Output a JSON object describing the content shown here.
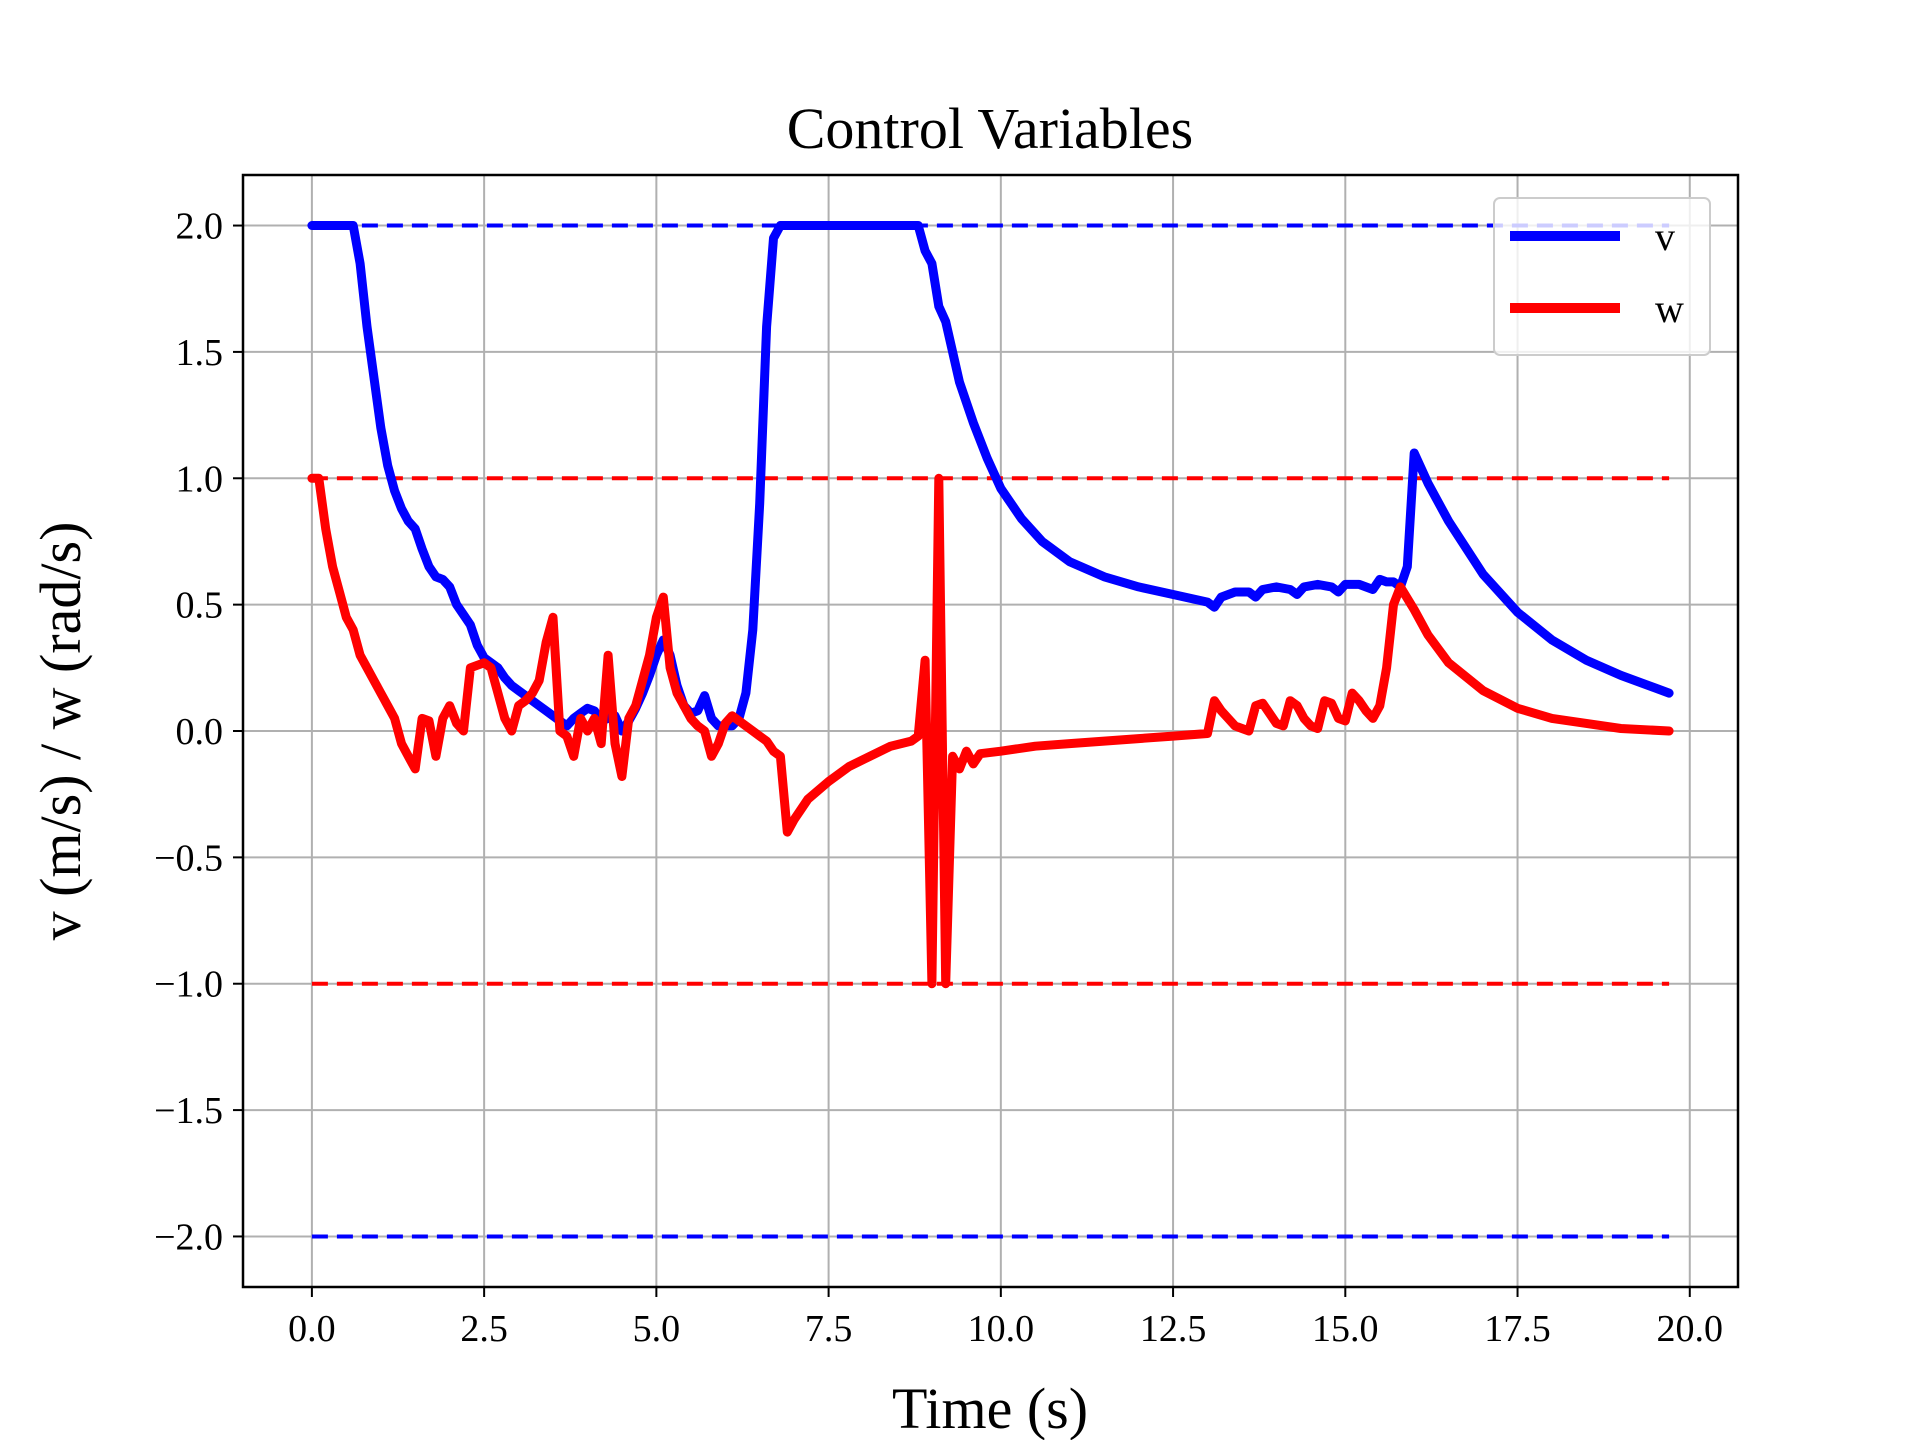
{
  "chart_data": {
    "type": "line",
    "title": "Control Variables",
    "xlabel": "Time (s)",
    "ylabel": "v (m/s) / w (rad/s)",
    "xlim": [
      -1.0,
      20.7
    ],
    "ylim": [
      -2.2,
      2.2
    ],
    "xticks": [
      0.0,
      2.5,
      5.0,
      7.5,
      10.0,
      12.5,
      15.0,
      17.5,
      20.0
    ],
    "xtick_labels": [
      "0.0",
      "2.5",
      "5.0",
      "7.5",
      "10.0",
      "12.5",
      "15.0",
      "17.5",
      "20.0"
    ],
    "yticks": [
      -2.0,
      -1.5,
      -1.0,
      -0.5,
      0.0,
      0.5,
      1.0,
      1.5,
      2.0
    ],
    "ytick_labels": [
      "−2.0",
      "−1.5",
      "−1.0",
      "−0.5",
      "0.0",
      "0.5",
      "1.0",
      "1.5",
      "2.0"
    ],
    "grid": true,
    "legend_position": "top-right",
    "bounds": [
      {
        "y": 2.0,
        "color": "#0000ff",
        "x_range": [
          0.0,
          19.7
        ]
      },
      {
        "y": -2.0,
        "color": "#0000ff",
        "x_range": [
          0.0,
          19.7
        ]
      },
      {
        "y": 1.0,
        "color": "#ff0000",
        "x_range": [
          0.0,
          19.7
        ]
      },
      {
        "y": -1.0,
        "color": "#ff0000",
        "x_range": [
          0.0,
          19.7
        ]
      }
    ],
    "series": [
      {
        "name": "v",
        "color": "#0000ff",
        "points": [
          [
            0.0,
            2.0
          ],
          [
            0.6,
            2.0
          ],
          [
            0.7,
            1.85
          ],
          [
            0.8,
            1.6
          ],
          [
            0.9,
            1.4
          ],
          [
            1.0,
            1.2
          ],
          [
            1.1,
            1.05
          ],
          [
            1.2,
            0.95
          ],
          [
            1.3,
            0.88
          ],
          [
            1.4,
            0.83
          ],
          [
            1.5,
            0.8
          ],
          [
            1.6,
            0.72
          ],
          [
            1.7,
            0.65
          ],
          [
            1.8,
            0.61
          ],
          [
            1.9,
            0.6
          ],
          [
            2.0,
            0.57
          ],
          [
            2.1,
            0.5
          ],
          [
            2.2,
            0.46
          ],
          [
            2.3,
            0.42
          ],
          [
            2.4,
            0.34
          ],
          [
            2.5,
            0.29
          ],
          [
            2.6,
            0.27
          ],
          [
            2.7,
            0.25
          ],
          [
            2.8,
            0.21
          ],
          [
            2.9,
            0.18
          ],
          [
            3.0,
            0.16
          ],
          [
            3.1,
            0.14
          ],
          [
            3.2,
            0.12
          ],
          [
            3.3,
            0.1
          ],
          [
            3.4,
            0.08
          ],
          [
            3.5,
            0.06
          ],
          [
            3.6,
            0.04
          ],
          [
            3.7,
            0.02
          ],
          [
            3.8,
            0.05
          ],
          [
            3.9,
            0.07
          ],
          [
            4.0,
            0.09
          ],
          [
            4.1,
            0.08
          ],
          [
            4.2,
            0.04
          ],
          [
            4.3,
            0.05
          ],
          [
            4.4,
            0.06
          ],
          [
            4.5,
            0.0
          ],
          [
            4.6,
            0.04
          ],
          [
            4.7,
            0.09
          ],
          [
            4.8,
            0.15
          ],
          [
            4.9,
            0.22
          ],
          [
            5.0,
            0.3
          ],
          [
            5.1,
            0.36
          ],
          [
            5.2,
            0.3
          ],
          [
            5.3,
            0.18
          ],
          [
            5.4,
            0.1
          ],
          [
            5.5,
            0.07
          ],
          [
            5.6,
            0.08
          ],
          [
            5.7,
            0.14
          ],
          [
            5.8,
            0.05
          ],
          [
            5.9,
            0.02
          ],
          [
            6.0,
            0.02
          ],
          [
            6.1,
            0.02
          ],
          [
            6.2,
            0.05
          ],
          [
            6.3,
            0.15
          ],
          [
            6.4,
            0.4
          ],
          [
            6.5,
            0.9
          ],
          [
            6.6,
            1.6
          ],
          [
            6.7,
            1.95
          ],
          [
            6.8,
            2.0
          ],
          [
            7.5,
            2.0
          ],
          [
            8.8,
            2.0
          ],
          [
            8.9,
            1.9
          ],
          [
            9.0,
            1.85
          ],
          [
            9.1,
            1.68
          ],
          [
            9.2,
            1.62
          ],
          [
            9.3,
            1.5
          ],
          [
            9.4,
            1.38
          ],
          [
            9.6,
            1.22
          ],
          [
            9.8,
            1.08
          ],
          [
            10.0,
            0.96
          ],
          [
            10.3,
            0.84
          ],
          [
            10.6,
            0.75
          ],
          [
            11.0,
            0.67
          ],
          [
            11.5,
            0.61
          ],
          [
            12.0,
            0.57
          ],
          [
            12.5,
            0.54
          ],
          [
            13.0,
            0.51
          ],
          [
            13.1,
            0.49
          ],
          [
            13.2,
            0.53
          ],
          [
            13.4,
            0.55
          ],
          [
            13.6,
            0.55
          ],
          [
            13.7,
            0.53
          ],
          [
            13.8,
            0.56
          ],
          [
            14.0,
            0.57
          ],
          [
            14.2,
            0.56
          ],
          [
            14.3,
            0.54
          ],
          [
            14.4,
            0.57
          ],
          [
            14.6,
            0.58
          ],
          [
            14.8,
            0.57
          ],
          [
            14.9,
            0.55
          ],
          [
            15.0,
            0.58
          ],
          [
            15.2,
            0.58
          ],
          [
            15.4,
            0.56
          ],
          [
            15.5,
            0.6
          ],
          [
            15.6,
            0.59
          ],
          [
            15.7,
            0.59
          ],
          [
            15.8,
            0.57
          ],
          [
            15.9,
            0.65
          ],
          [
            16.0,
            1.1
          ],
          [
            16.2,
            0.98
          ],
          [
            16.5,
            0.83
          ],
          [
            17.0,
            0.62
          ],
          [
            17.5,
            0.47
          ],
          [
            18.0,
            0.36
          ],
          [
            18.5,
            0.28
          ],
          [
            19.0,
            0.22
          ],
          [
            19.5,
            0.17
          ],
          [
            19.7,
            0.15
          ]
        ]
      },
      {
        "name": "w",
        "color": "#ff0000",
        "points": [
          [
            0.0,
            1.0
          ],
          [
            0.1,
            1.0
          ],
          [
            0.2,
            0.8
          ],
          [
            0.3,
            0.65
          ],
          [
            0.4,
            0.55
          ],
          [
            0.5,
            0.45
          ],
          [
            0.6,
            0.4
          ],
          [
            0.7,
            0.3
          ],
          [
            0.8,
            0.25
          ],
          [
            0.9,
            0.2
          ],
          [
            1.0,
            0.15
          ],
          [
            1.1,
            0.1
          ],
          [
            1.2,
            0.05
          ],
          [
            1.3,
            -0.05
          ],
          [
            1.4,
            -0.1
          ],
          [
            1.5,
            -0.15
          ],
          [
            1.6,
            0.05
          ],
          [
            1.7,
            0.04
          ],
          [
            1.8,
            -0.1
          ],
          [
            1.9,
            0.05
          ],
          [
            2.0,
            0.1
          ],
          [
            2.1,
            0.03
          ],
          [
            2.2,
            0.0
          ],
          [
            2.3,
            0.25
          ],
          [
            2.4,
            0.26
          ],
          [
            2.5,
            0.27
          ],
          [
            2.6,
            0.25
          ],
          [
            2.7,
            0.15
          ],
          [
            2.8,
            0.05
          ],
          [
            2.9,
            0.0
          ],
          [
            3.0,
            0.1
          ],
          [
            3.1,
            0.12
          ],
          [
            3.2,
            0.15
          ],
          [
            3.3,
            0.2
          ],
          [
            3.4,
            0.35
          ],
          [
            3.5,
            0.45
          ],
          [
            3.6,
            0.0
          ],
          [
            3.7,
            -0.02
          ],
          [
            3.8,
            -0.1
          ],
          [
            3.9,
            0.05
          ],
          [
            4.0,
            0.0
          ],
          [
            4.1,
            0.05
          ],
          [
            4.2,
            -0.05
          ],
          [
            4.3,
            0.3
          ],
          [
            4.4,
            -0.05
          ],
          [
            4.5,
            -0.18
          ],
          [
            4.6,
            0.05
          ],
          [
            4.7,
            0.1
          ],
          [
            4.8,
            0.2
          ],
          [
            4.9,
            0.3
          ],
          [
            5.0,
            0.45
          ],
          [
            5.1,
            0.53
          ],
          [
            5.2,
            0.25
          ],
          [
            5.3,
            0.15
          ],
          [
            5.4,
            0.1
          ],
          [
            5.5,
            0.05
          ],
          [
            5.6,
            0.02
          ],
          [
            5.7,
            0.0
          ],
          [
            5.8,
            -0.1
          ],
          [
            5.9,
            -0.05
          ],
          [
            6.0,
            0.03
          ],
          [
            6.1,
            0.06
          ],
          [
            6.2,
            0.04
          ],
          [
            6.4,
            0.0
          ],
          [
            6.5,
            -0.02
          ],
          [
            6.6,
            -0.04
          ],
          [
            6.7,
            -0.08
          ],
          [
            6.8,
            -0.1
          ],
          [
            6.9,
            -0.4
          ],
          [
            7.0,
            -0.35
          ],
          [
            7.2,
            -0.27
          ],
          [
            7.5,
            -0.2
          ],
          [
            7.8,
            -0.14
          ],
          [
            8.1,
            -0.1
          ],
          [
            8.4,
            -0.06
          ],
          [
            8.7,
            -0.04
          ],
          [
            8.8,
            -0.02
          ],
          [
            8.9,
            0.28
          ],
          [
            9.0,
            -1.0
          ],
          [
            9.1,
            1.0
          ],
          [
            9.2,
            -1.0
          ],
          [
            9.3,
            -0.1
          ],
          [
            9.4,
            -0.15
          ],
          [
            9.5,
            -0.08
          ],
          [
            9.6,
            -0.13
          ],
          [
            9.7,
            -0.09
          ],
          [
            10.0,
            -0.08
          ],
          [
            10.5,
            -0.06
          ],
          [
            11.0,
            -0.05
          ],
          [
            11.5,
            -0.04
          ],
          [
            12.0,
            -0.03
          ],
          [
            12.5,
            -0.02
          ],
          [
            13.0,
            -0.01
          ],
          [
            13.1,
            0.12
          ],
          [
            13.2,
            0.08
          ],
          [
            13.3,
            0.05
          ],
          [
            13.4,
            0.02
          ],
          [
            13.5,
            0.01
          ],
          [
            13.6,
            0.0
          ],
          [
            13.7,
            0.1
          ],
          [
            13.8,
            0.11
          ],
          [
            13.9,
            0.07
          ],
          [
            14.0,
            0.03
          ],
          [
            14.1,
            0.02
          ],
          [
            14.2,
            0.12
          ],
          [
            14.3,
            0.1
          ],
          [
            14.4,
            0.05
          ],
          [
            14.5,
            0.02
          ],
          [
            14.6,
            0.01
          ],
          [
            14.7,
            0.12
          ],
          [
            14.8,
            0.11
          ],
          [
            14.9,
            0.05
          ],
          [
            15.0,
            0.04
          ],
          [
            15.1,
            0.15
          ],
          [
            15.2,
            0.12
          ],
          [
            15.3,
            0.08
          ],
          [
            15.4,
            0.05
          ],
          [
            15.5,
            0.1
          ],
          [
            15.6,
            0.25
          ],
          [
            15.7,
            0.5
          ],
          [
            15.8,
            0.57
          ],
          [
            16.0,
            0.48
          ],
          [
            16.2,
            0.38
          ],
          [
            16.5,
            0.27
          ],
          [
            17.0,
            0.16
          ],
          [
            17.5,
            0.09
          ],
          [
            18.0,
            0.05
          ],
          [
            18.5,
            0.03
          ],
          [
            19.0,
            0.01
          ],
          [
            19.7,
            0.0
          ]
        ]
      }
    ]
  }
}
